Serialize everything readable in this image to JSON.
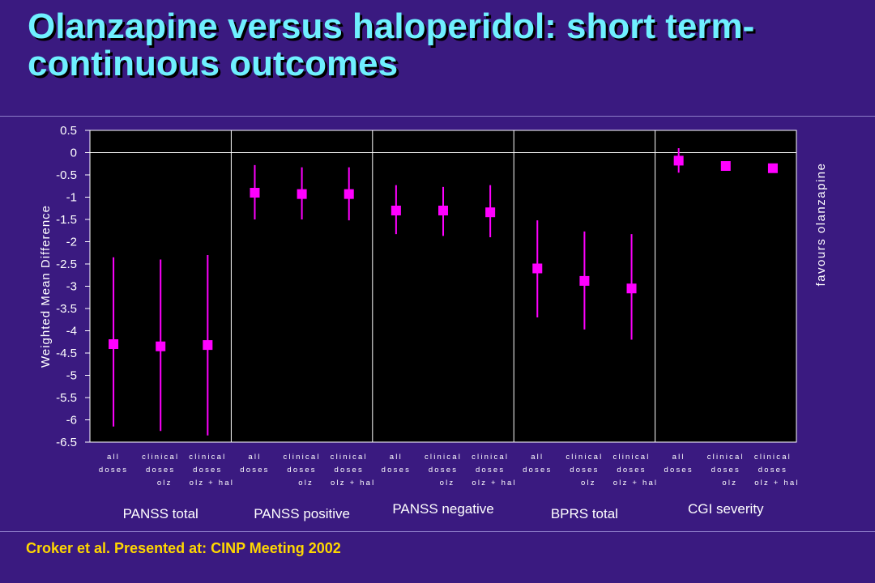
{
  "slide": {
    "title_line1": "Olanzapine versus haloperidol: short term-",
    "title_line2": "continuous outcomes",
    "footer": "Croker et al. Presented at: CINP Meeting 2002"
  },
  "chart_data": {
    "type": "scatter",
    "ylabel": "Weighted Mean Difference",
    "right_label": "favours olanzapine",
    "ylim": [
      -6.5,
      0.5
    ],
    "yticks": [
      0.5,
      0,
      -0.5,
      -1,
      -1.5,
      -2,
      -2.5,
      -3,
      -3.5,
      -4,
      -4.5,
      -5,
      -5.5,
      -6,
      -6.5
    ],
    "grid": false,
    "groups": [
      {
        "name": "PANSS total",
        "items": [
          {
            "label": [
              "all",
              "doses"
            ],
            "y": -4.3,
            "ci": [
              -6.15,
              -2.35
            ]
          },
          {
            "label": [
              "clinical",
              "doses",
              "olz"
            ],
            "y": -4.35,
            "ci": [
              -6.25,
              -2.4
            ]
          },
          {
            "label": [
              "clinical",
              "doses",
              "olz + hal"
            ],
            "y": -4.32,
            "ci": [
              -6.35,
              -2.3
            ]
          }
        ]
      },
      {
        "name": "PANSS positive",
        "items": [
          {
            "label": [
              "all",
              "doses"
            ],
            "y": -0.9,
            "ci": [
              -1.5,
              -0.28
            ]
          },
          {
            "label": [
              "clinical",
              "doses",
              "olz"
            ],
            "y": -0.93,
            "ci": [
              -1.5,
              -0.33
            ]
          },
          {
            "label": [
              "clinical",
              "doses",
              "olz + hal"
            ],
            "y": -0.93,
            "ci": [
              -1.52,
              -0.33
            ]
          }
        ]
      },
      {
        "name": "PANSS negative",
        "items": [
          {
            "label": [
              "all",
              "doses"
            ],
            "y": -1.3,
            "ci": [
              -1.83,
              -0.73
            ]
          },
          {
            "label": [
              "clinical",
              "doses",
              "olz"
            ],
            "y": -1.3,
            "ci": [
              -1.87,
              -0.77
            ]
          },
          {
            "label": [
              "clinical",
              "doses",
              "olz + hal"
            ],
            "y": -1.34,
            "ci": [
              -1.9,
              -0.73
            ]
          }
        ]
      },
      {
        "name": "BPRS total",
        "items": [
          {
            "label": [
              "all",
              "doses"
            ],
            "y": -2.6,
            "ci": [
              -3.7,
              -1.52
            ]
          },
          {
            "label": [
              "clinical",
              "doses",
              "olz"
            ],
            "y": -2.88,
            "ci": [
              -3.97,
              -1.77
            ]
          },
          {
            "label": [
              "clinical",
              "doses",
              "olz + hal"
            ],
            "y": -3.05,
            "ci": [
              -4.2,
              -1.83
            ]
          }
        ]
      },
      {
        "name": "CGI severity",
        "items": [
          {
            "label": [
              "all",
              "doses"
            ],
            "y": -0.18,
            "ci": [
              -0.45,
              0.1
            ]
          },
          {
            "label": [
              "clinical",
              "doses",
              "olz"
            ],
            "y": -0.3,
            "ci": null
          },
          {
            "label": [
              "clinical",
              "doses",
              "olz + hal"
            ],
            "y": -0.35,
            "ci": null
          }
        ]
      }
    ],
    "colors": {
      "plot_bg": "#000000",
      "marker": "#ff00ff",
      "axis_text": "#ffffff",
      "group_label": "#ffffff"
    }
  }
}
